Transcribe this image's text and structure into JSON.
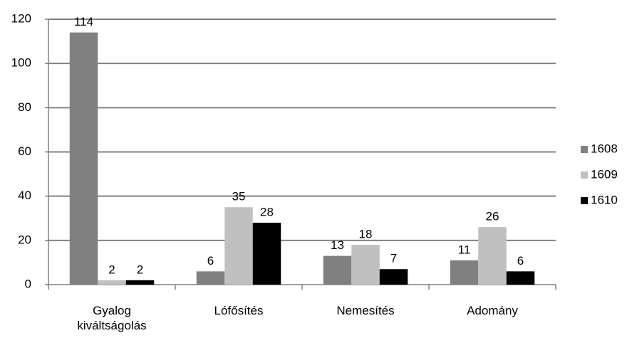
{
  "chart_data": {
    "type": "bar",
    "categories": [
      "Gyalog kiváltságolás",
      "Lófősítés",
      "Nemesítés",
      "Adomány"
    ],
    "series": [
      {
        "name": "1608",
        "color": "#808080",
        "values": [
          114,
          6,
          13,
          11
        ]
      },
      {
        "name": "1609",
        "color": "#c0c0c0",
        "values": [
          2,
          35,
          18,
          26
        ]
      },
      {
        "name": "1610",
        "color": "#000000",
        "values": [
          2,
          28,
          7,
          6
        ]
      }
    ],
    "ylim": [
      0,
      120
    ],
    "yticks": [
      0,
      20,
      40,
      60,
      80,
      100,
      120
    ],
    "grid": true,
    "legend": "right"
  }
}
